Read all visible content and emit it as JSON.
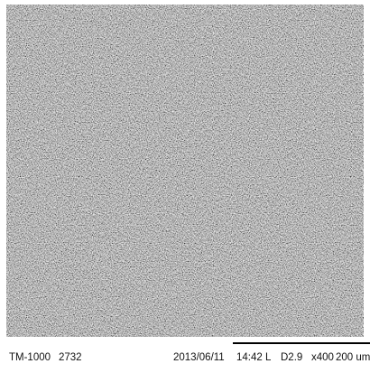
{
  "image": {
    "caption": {
      "instrument": "TM-1000",
      "number": "2732",
      "date": "2013/06/11",
      "time": "14:42",
      "mode": "L",
      "distance": "D2.9",
      "magnification": "x400",
      "scale": "200 um"
    }
  }
}
